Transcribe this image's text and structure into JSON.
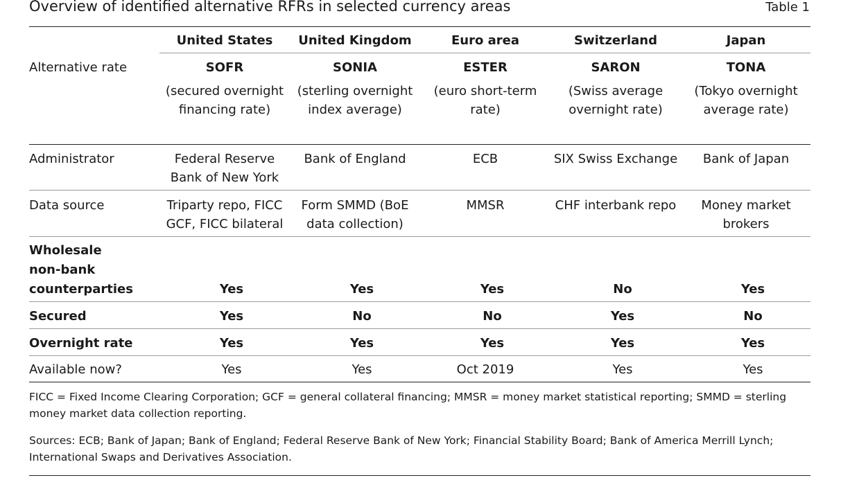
{
  "title": "Overview of identified alternative RFRs in selected currency areas",
  "table_number": "Table 1",
  "columns": [
    "United States",
    "United Kingdom",
    "Euro area",
    "Switzerland",
    "Japan"
  ],
  "rows": {
    "alternative_rate": {
      "label": "Alternative rate",
      "codes": [
        "SOFR",
        "SONIA",
        "ESTER",
        "SARON",
        "TONA"
      ],
      "names_line1": [
        "(secured overnight",
        "(sterling overnight",
        "(euro short-term",
        "(Swiss average",
        "(Tokyo overnight"
      ],
      "names_line2": [
        "financing rate)",
        "index average)",
        "rate)",
        "overnight rate)",
        "average rate)"
      ]
    },
    "administrator": {
      "label": "Administrator",
      "line1": [
        "Federal Reserve",
        "Bank of England",
        "ECB",
        "SIX Swiss Exchange",
        "Bank of Japan"
      ],
      "line2": [
        "Bank of New York",
        "",
        "",
        "",
        ""
      ]
    },
    "data_source": {
      "label": "Data source",
      "line1": [
        "Triparty repo, FICC",
        "Form SMMD (BoE",
        "MMSR",
        "CHF interbank repo",
        "Money market"
      ],
      "line2": [
        "GCF, FICC bilateral",
        "data collection)",
        "",
        "",
        "brokers"
      ]
    },
    "wholesale": {
      "label_lines": [
        "Wholesale",
        "non-bank",
        "counterparties"
      ],
      "values": [
        "Yes",
        "Yes",
        "Yes",
        "No",
        "Yes"
      ]
    },
    "secured": {
      "label": "Secured",
      "values": [
        "Yes",
        "No",
        "No",
        "Yes",
        "No"
      ]
    },
    "overnight": {
      "label": "Overnight rate",
      "values": [
        "Yes",
        "Yes",
        "Yes",
        "Yes",
        "Yes"
      ]
    },
    "available": {
      "label": "Available now?",
      "values": [
        "Yes",
        "Yes",
        "Oct 2019",
        "Yes",
        "Yes"
      ]
    }
  },
  "footnote": "FICC = Fixed Income Clearing Corporation; GCF = general collateral financing; MMSR = money market statistical reporting; SMMD = sterling money market data collection reporting.",
  "sources": "Sources: ECB; Bank of Japan; Bank of England; Federal Reserve Bank of New York; Financial Stability Board; Bank of America Merrill Lynch; International Swaps and Derivatives Association."
}
